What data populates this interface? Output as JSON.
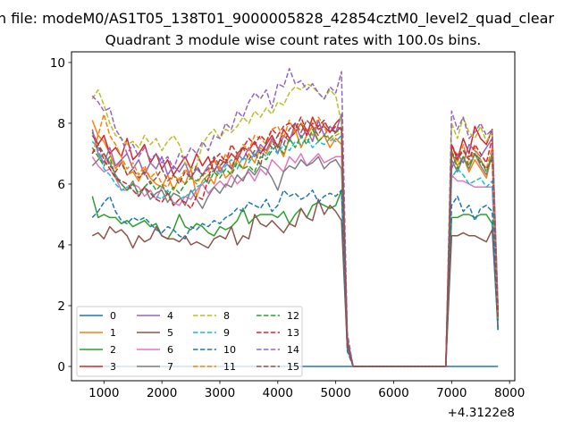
{
  "chart_data": {
    "type": "line",
    "suptitle": "n file: modeM0/AS1T05_138T01_9000005828_42854cztM0_level2_quad_clear",
    "title": "Quadrant 3 module wise count rates with 100.0s bins.",
    "xlabel": "",
    "ylabel": "",
    "x_offset_label": "+4.3122e8",
    "xlim": [
      440,
      8090
    ],
    "ylim": [
      -0.47,
      10.35
    ],
    "xticks": [
      1000,
      2000,
      3000,
      4000,
      5000,
      6000,
      7000,
      8000
    ],
    "yticks": [
      0,
      2,
      4,
      6,
      8,
      10
    ],
    "grid": false,
    "legend_placement": "lower-left",
    "legend_columns": 4,
    "x_start": 800,
    "x_step": 100,
    "series": [
      {
        "name": "0",
        "color": "#1f77b4",
        "dash": false,
        "values": [
          0,
          0,
          0,
          0,
          0,
          0,
          0,
          0,
          0,
          0,
          0,
          0,
          0,
          0,
          0,
          0,
          0,
          0,
          0,
          0,
          0,
          0,
          0,
          0,
          0,
          0,
          0,
          0,
          0,
          0,
          0,
          0,
          0,
          0,
          0,
          0,
          0,
          0,
          0,
          0,
          0,
          0,
          0,
          0,
          0,
          0,
          0,
          0,
          0,
          0,
          0,
          0,
          0,
          0,
          0,
          0,
          0,
          0,
          0,
          0,
          0,
          0,
          0,
          0,
          0,
          0,
          0,
          0,
          0,
          0,
          0
        ]
      },
      {
        "name": "1",
        "color": "#ff7f0e",
        "dash": false,
        "values": [
          8.1,
          7.6,
          7.4,
          7.0,
          6.5,
          6.8,
          6.3,
          6.4,
          6.1,
          6.5,
          6.2,
          6.0,
          5.9,
          6.3,
          5.8,
          6.2,
          6.0,
          6.5,
          5.6,
          6.1,
          6.3,
          6.0,
          6.6,
          6.2,
          6.4,
          6.8,
          6.5,
          7.0,
          6.7,
          7.2,
          7.0,
          7.4,
          7.3,
          6.9,
          7.5,
          7.8,
          7.2,
          7.6,
          7.9,
          7.4,
          7.6,
          7.2,
          7.5,
          7.3,
          0.8,
          0,
          0,
          0,
          0,
          0,
          0,
          0,
          0,
          0,
          0,
          0,
          0,
          0,
          0,
          0,
          0,
          0,
          7.0,
          6.6,
          6.9,
          6.4,
          6.8,
          6.5,
          6.2,
          7.0,
          1.7
        ]
      },
      {
        "name": "2",
        "color": "#2ca02c",
        "dash": false,
        "values": [
          5.6,
          4.9,
          5.0,
          4.9,
          4.9,
          4.7,
          4.8,
          4.6,
          4.7,
          4.8,
          4.6,
          4.7,
          4.3,
          4.2,
          4.5,
          5.0,
          4.6,
          4.5,
          4.7,
          4.6,
          4.4,
          4.3,
          4.6,
          4.5,
          4.6,
          4.8,
          5.2,
          4.7,
          4.9,
          5.0,
          5.0,
          5.0,
          4.9,
          5.1,
          4.7,
          5.0,
          5.2,
          4.9,
          5.3,
          5.4,
          5.3,
          5.2,
          5.3,
          5.8,
          0.6,
          0,
          0,
          0,
          0,
          0,
          0,
          0,
          0,
          0,
          0,
          0,
          0,
          0,
          0,
          0,
          0,
          0,
          4.9,
          4.9,
          5.0,
          5.0,
          4.9,
          5.0,
          5.0,
          4.7,
          1.2
        ]
      },
      {
        "name": "3",
        "color": "#d62728",
        "dash": false,
        "values": [
          7.7,
          7.3,
          7.6,
          7.0,
          7.2,
          6.9,
          7.5,
          6.8,
          7.0,
          7.3,
          6.7,
          7.0,
          6.5,
          6.8,
          6.3,
          6.6,
          6.9,
          6.5,
          7.0,
          6.6,
          6.9,
          6.4,
          6.8,
          6.7,
          7.0,
          6.8,
          7.2,
          7.1,
          7.4,
          7.0,
          7.3,
          7.6,
          7.2,
          7.8,
          7.5,
          7.7,
          8.0,
          7.6,
          8.2,
          7.8,
          7.9,
          7.7,
          8.0,
          8.2,
          0.7,
          0,
          0,
          0,
          0,
          0,
          0,
          0,
          0,
          0,
          0,
          0,
          0,
          0,
          0,
          0,
          0,
          0,
          7.3,
          6.8,
          7.5,
          7.0,
          7.9,
          7.5,
          7.3,
          7.8,
          1.8
        ]
      },
      {
        "name": "4",
        "color": "#9467bd",
        "dash": false,
        "values": [
          7.8,
          7.0,
          6.7,
          7.2,
          6.6,
          6.8,
          7.0,
          6.5,
          6.8,
          6.3,
          6.7,
          6.5,
          6.9,
          6.3,
          6.6,
          6.4,
          6.7,
          6.2,
          6.5,
          6.3,
          6.6,
          6.8,
          6.4,
          6.7,
          6.5,
          7.0,
          6.8,
          7.2,
          6.9,
          7.3,
          7.1,
          7.5,
          7.0,
          7.6,
          7.4,
          8.0,
          7.5,
          7.8,
          7.4,
          8.1,
          7.6,
          7.9,
          7.7,
          8.3,
          0.9,
          0,
          0,
          0,
          0,
          0,
          0,
          0,
          0,
          0,
          0,
          0,
          0,
          0,
          0,
          0,
          0,
          0,
          6.5,
          7.0,
          6.7,
          7.3,
          7.1,
          6.9,
          7.2,
          7.5,
          1.6
        ]
      },
      {
        "name": "5",
        "color": "#8c564b",
        "dash": false,
        "values": [
          4.3,
          4.4,
          4.2,
          4.6,
          4.4,
          4.5,
          4.3,
          3.9,
          4.3,
          4.1,
          4.2,
          4.6,
          4.3,
          4.2,
          4.2,
          4.1,
          4.3,
          4.0,
          4.1,
          4.0,
          3.9,
          4.2,
          4.3,
          4.2,
          4.6,
          4.0,
          4.3,
          4.2,
          5.0,
          4.7,
          4.6,
          4.8,
          4.6,
          4.4,
          4.7,
          4.6,
          5.2,
          4.9,
          4.8,
          5.5,
          5.0,
          5.3,
          5.1,
          4.8,
          0.6,
          0,
          0,
          0,
          0,
          0,
          0,
          0,
          0,
          0,
          0,
          0,
          0,
          0,
          0,
          0,
          0,
          0,
          4.3,
          4.3,
          4.4,
          4.3,
          4.3,
          4.2,
          4.1,
          4.5,
          1.3
        ]
      },
      {
        "name": "6",
        "color": "#e377c2",
        "dash": false,
        "values": [
          6.9,
          6.6,
          6.4,
          6.5,
          6.2,
          5.8,
          5.8,
          6.0,
          5.9,
          5.6,
          5.8,
          5.5,
          5.9,
          5.7,
          5.4,
          5.3,
          5.6,
          5.5,
          5.8,
          6.0,
          5.7,
          5.9,
          6.1,
          5.9,
          6.3,
          6.0,
          6.2,
          6.4,
          6.1,
          6.5,
          6.3,
          6.8,
          6.6,
          6.4,
          6.9,
          6.7,
          7.0,
          6.6,
          6.8,
          7.0,
          6.7,
          6.8,
          6.9,
          6.9,
          0.7,
          0,
          0,
          0,
          0,
          0,
          0,
          0,
          0,
          0,
          0,
          0,
          0,
          0,
          0,
          0,
          0,
          0,
          6.3,
          6.1,
          6.1,
          6.0,
          5.9,
          5.9,
          5.9,
          5.9,
          1.5
        ]
      },
      {
        "name": "7",
        "color": "#7f7f7f",
        "dash": false,
        "values": [
          6.6,
          6.8,
          7.0,
          6.7,
          6.3,
          6.0,
          5.8,
          6.1,
          5.6,
          5.9,
          5.5,
          5.7,
          5.8,
          5.4,
          5.7,
          5.6,
          5.3,
          5.8,
          5.5,
          5.2,
          5.6,
          5.9,
          5.7,
          6.0,
          5.9,
          6.3,
          6.1,
          6.5,
          6.3,
          6.6,
          6.5,
          6.2,
          5.8,
          6.4,
          6.6,
          6.5,
          6.8,
          6.6,
          6.7,
          6.9,
          6.5,
          6.7,
          6.8,
          6.5,
          0.7,
          0,
          0,
          0,
          0,
          0,
          0,
          0,
          0,
          0,
          0,
          0,
          0,
          0,
          0,
          0,
          0,
          0,
          6.8,
          6.4,
          6.9,
          6.5,
          7.0,
          6.6,
          6.3,
          7.0,
          1.5
        ]
      },
      {
        "name": "8",
        "color": "#bcbd22",
        "dash": true,
        "values": [
          8.8,
          9.1,
          8.6,
          8.0,
          7.6,
          7.5,
          7.3,
          7.4,
          7.2,
          7.6,
          7.3,
          7.5,
          7.1,
          7.4,
          7.6,
          7.3,
          6.7,
          6.5,
          6.6,
          7.3,
          7.6,
          7.8,
          7.5,
          7.8,
          7.7,
          7.9,
          8.2,
          8.0,
          8.4,
          8.2,
          8.5,
          8.3,
          8.7,
          8.6,
          9.0,
          9.2,
          9.1,
          9.3,
          9.2,
          9.0,
          8.8,
          9.1,
          8.9,
          8.0,
          0.9,
          0,
          0,
          0,
          0,
          0,
          0,
          0,
          0,
          0,
          0,
          0,
          0,
          0,
          0,
          0,
          0,
          0,
          8.0,
          7.5,
          8.2,
          7.7,
          7.5,
          7.9,
          7.4,
          7.7,
          1.9
        ]
      },
      {
        "name": "9",
        "color": "#17becf",
        "dash": true,
        "values": [
          7.4,
          7.2,
          6.5,
          6.3,
          6.0,
          5.8,
          5.9,
          5.8,
          5.6,
          5.9,
          5.7,
          5.6,
          5.5,
          5.8,
          5.3,
          5.5,
          5.6,
          5.7,
          5.9,
          6.0,
          6.2,
          6.5,
          6.3,
          6.6,
          6.8,
          6.5,
          6.9,
          6.7,
          7.0,
          7.1,
          6.9,
          7.2,
          7.0,
          7.3,
          7.1,
          7.4,
          7.3,
          7.5,
          7.2,
          7.4,
          7.3,
          7.5,
          7.4,
          7.6,
          0.7,
          0,
          0,
          0,
          0,
          0,
          0,
          0,
          0,
          0,
          0,
          0,
          0,
          0,
          0,
          0,
          0,
          0,
          6.2,
          6.5,
          6.3,
          6.0,
          6.1,
          6.2,
          5.9,
          6.1,
          1.6
        ]
      },
      {
        "name": "10",
        "color": "#1f77b4",
        "dash": true,
        "values": [
          4.9,
          5.1,
          5.4,
          5.6,
          5.1,
          4.8,
          4.7,
          4.9,
          4.8,
          4.9,
          4.7,
          4.5,
          4.4,
          4.6,
          4.5,
          4.3,
          4.2,
          4.6,
          4.5,
          4.7,
          4.6,
          4.8,
          4.7,
          4.9,
          5.0,
          5.2,
          5.1,
          5.4,
          5.3,
          5.2,
          5.5,
          5.1,
          5.3,
          5.8,
          5.6,
          5.7,
          5.5,
          5.6,
          5.8,
          5.4,
          5.6,
          5.7,
          5.6,
          5.8,
          0.5,
          0,
          0,
          0,
          0,
          0,
          0,
          0,
          0,
          0,
          0,
          0,
          0,
          0,
          0,
          0,
          0,
          0,
          5.3,
          5.6,
          5.1,
          5.3,
          4.8,
          5.2,
          5.3,
          5.1,
          1.2
        ]
      },
      {
        "name": "11",
        "color": "#ff7f0e",
        "dash": true,
        "values": [
          7.0,
          7.6,
          8.3,
          7.6,
          7.3,
          6.9,
          6.5,
          6.7,
          6.3,
          6.6,
          6.2,
          6.4,
          6.0,
          5.9,
          6.3,
          6.1,
          6.5,
          6.2,
          6.0,
          6.3,
          6.4,
          6.8,
          6.5,
          7.0,
          6.6,
          6.9,
          7.3,
          7.1,
          7.6,
          7.5,
          7.3,
          7.8,
          7.9,
          7.5,
          8.1,
          7.7,
          8.0,
          7.8,
          7.6,
          8.2,
          7.9,
          7.4,
          7.6,
          7.7,
          0.8,
          0,
          0,
          0,
          0,
          0,
          0,
          0,
          0,
          0,
          0,
          0,
          0,
          0,
          0,
          0,
          0,
          0,
          7.1,
          6.7,
          7.3,
          6.6,
          7.2,
          6.8,
          6.5,
          7.2,
          1.6
        ]
      },
      {
        "name": "12",
        "color": "#2ca02c",
        "dash": true,
        "values": [
          7.2,
          6.9,
          6.6,
          6.9,
          6.2,
          6.0,
          5.8,
          6.0,
          5.7,
          5.9,
          6.1,
          5.8,
          6.0,
          5.6,
          5.9,
          5.7,
          6.0,
          6.2,
          6.1,
          6.3,
          6.0,
          6.4,
          6.2,
          6.5,
          6.3,
          6.7,
          6.5,
          6.6,
          6.4,
          6.9,
          6.8,
          7.1,
          7.3,
          7.0,
          7.5,
          7.2,
          7.6,
          7.3,
          7.8,
          7.4,
          7.6,
          7.5,
          7.7,
          7.8,
          0.9,
          0,
          0,
          0,
          0,
          0,
          0,
          0,
          0,
          0,
          0,
          0,
          0,
          0,
          0,
          0,
          0,
          0,
          7.1,
          6.5,
          6.9,
          6.6,
          7.0,
          6.8,
          6.4,
          7.0,
          1.7
        ]
      },
      {
        "name": "13",
        "color": "#d62728",
        "dash": true,
        "values": [
          7.0,
          7.3,
          6.8,
          6.5,
          6.2,
          6.1,
          6.0,
          5.8,
          5.6,
          5.9,
          5.7,
          5.5,
          5.4,
          5.7,
          5.3,
          5.5,
          5.4,
          5.2,
          5.6,
          5.5,
          6.2,
          6.8,
          7.0,
          6.7,
          7.3,
          7.0,
          7.2,
          7.5,
          7.3,
          7.6,
          7.4,
          7.8,
          7.6,
          7.9,
          8.0,
          7.8,
          8.2,
          7.7,
          8.0,
          7.9,
          8.1,
          7.7,
          7.9,
          7.8,
          0.8,
          0,
          0,
          0,
          0,
          0,
          0,
          0,
          0,
          0,
          0,
          0,
          0,
          0,
          0,
          0,
          0,
          0,
          7.3,
          6.9,
          7.1,
          6.8,
          7.3,
          7.0,
          6.7,
          7.5,
          1.8
        ]
      },
      {
        "name": "14",
        "color": "#9467bd",
        "dash": true,
        "values": [
          8.9,
          8.7,
          8.4,
          8.5,
          7.8,
          7.5,
          7.0,
          7.3,
          6.9,
          7.2,
          6.8,
          7.0,
          6.7,
          6.9,
          6.5,
          7.0,
          6.8,
          7.2,
          7.0,
          7.4,
          7.1,
          7.6,
          7.5,
          8.0,
          7.8,
          8.4,
          8.2,
          8.7,
          9.0,
          8.8,
          9.1,
          8.5,
          9.3,
          9.2,
          9.8,
          9.3,
          9.4,
          9.1,
          9.3,
          9.0,
          8.8,
          9.2,
          9.0,
          9.7,
          1.1,
          0,
          0,
          0,
          0,
          0,
          0,
          0,
          0,
          0,
          0,
          0,
          0,
          0,
          0,
          0,
          0,
          0,
          8.4,
          7.8,
          8.2,
          7.5,
          7.7,
          8.0,
          7.6,
          7.8,
          2.0
        ]
      },
      {
        "name": "15",
        "color": "#8c564b",
        "dash": true,
        "values": [
          7.6,
          7.3,
          7.0,
          6.6,
          6.4,
          6.7,
          6.3,
          6.5,
          6.2,
          6.4,
          6.0,
          6.2,
          6.5,
          6.1,
          6.3,
          6.0,
          6.4,
          6.2,
          6.6,
          6.3,
          6.5,
          6.9,
          6.6,
          6.8,
          6.5,
          7.0,
          7.2,
          6.8,
          7.1,
          6.6,
          7.4,
          7.2,
          7.6,
          7.3,
          7.8,
          8.0,
          7.7,
          8.1,
          7.9,
          7.6,
          8.0,
          7.8,
          7.7,
          7.9,
          0.7,
          0,
          0,
          0,
          0,
          0,
          0,
          0,
          0,
          0,
          0,
          0,
          0,
          0,
          0,
          0,
          0,
          0,
          7.0,
          6.8,
          7.1,
          6.9,
          7.0,
          6.7,
          6.5,
          6.8,
          1.6
        ]
      }
    ]
  }
}
